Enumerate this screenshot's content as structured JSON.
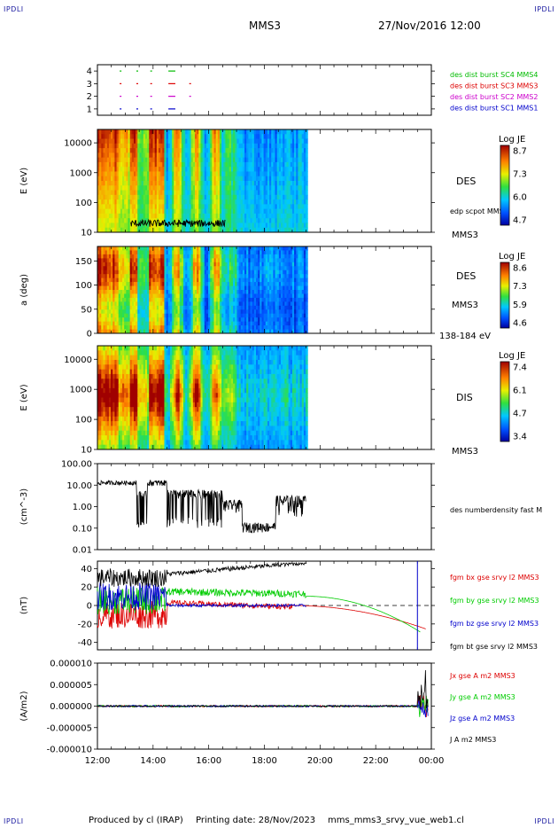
{
  "header": {
    "corner_tl": "IPDLI",
    "corner_tr": "IPDLI",
    "corner_bl": "IPDLI",
    "corner_br": "IPDLI",
    "spacecraft": "MMS3",
    "datetime": "27/Nov/2016 12:00"
  },
  "footer": {
    "produced_by": "Produced by cl (IRAP)",
    "printing_date": "Printing date: 28/Nov/2023",
    "file": "mms_mms3_srvy_vue_web1.cl"
  },
  "chart_data": [
    {
      "type": "scatter",
      "panel": "burst-availability",
      "yticks": [
        "1",
        "2",
        "3",
        "4"
      ],
      "ylim": [
        0.5,
        4.5
      ],
      "series": [
        {
          "name": "des dist burst SC1 MMS1",
          "y": 1,
          "color": "#0000cc",
          "intervals": [
            [
              12.8,
              12.85
            ],
            [
              13.4,
              13.45
            ],
            [
              13.9,
              13.95
            ],
            [
              14.55,
              14.8
            ]
          ]
        },
        {
          "name": "des dist burst SC2 MMS2",
          "y": 2,
          "color": "#cc00cc",
          "intervals": [
            [
              12.8,
              12.85
            ],
            [
              13.4,
              13.45
            ],
            [
              13.9,
              13.95
            ],
            [
              14.55,
              14.8
            ],
            [
              15.3,
              15.33
            ]
          ]
        },
        {
          "name": "des dist burst SC3 MMS3",
          "y": 3,
          "color": "#dd0000",
          "intervals": [
            [
              12.8,
              12.85
            ],
            [
              13.4,
              13.45
            ],
            [
              13.9,
              13.95
            ],
            [
              14.55,
              14.8
            ],
            [
              15.3,
              15.33
            ]
          ]
        },
        {
          "name": "des dist burst SC4 MMS4",
          "y": 4,
          "color": "#00bb00",
          "intervals": [
            [
              12.8,
              12.85
            ],
            [
              13.4,
              13.45
            ],
            [
              13.9,
              13.95
            ],
            [
              14.55,
              14.8
            ]
          ]
        }
      ]
    },
    {
      "type": "heatmap",
      "panel": "des-energy",
      "ylabel": "E (eV)",
      "yticks": [
        "10",
        "100",
        "1000",
        "10000"
      ],
      "label": "DES",
      "sublabel": "MMS3",
      "overlay_label": "edp scpot MMS3",
      "colorbar": {
        "title": "Log JE",
        "ticks": [
          "8.7",
          "7.3",
          "6.0",
          "4.7"
        ]
      }
    },
    {
      "type": "heatmap",
      "panel": "des-pitch",
      "ylabel": "a (deg)",
      "yticks": [
        "0",
        "50",
        "100",
        "150"
      ],
      "label": "DES",
      "sublabel": "MMS3",
      "energy_range": "138-184 eV",
      "colorbar": {
        "title": "Log JE",
        "ticks": [
          "8.6",
          "7.3",
          "5.9",
          "4.6"
        ]
      }
    },
    {
      "type": "heatmap",
      "panel": "dis-energy",
      "ylabel": "E (eV)",
      "yticks": [
        "10",
        "100",
        "1000",
        "10000"
      ],
      "label": "DIS",
      "sublabel": "MMS3",
      "colorbar": {
        "title": "Log JE",
        "ticks": [
          "7.4",
          "6.1",
          "4.7",
          "3.4"
        ]
      }
    },
    {
      "type": "line",
      "panel": "density",
      "ylabel": "(cm^-3)",
      "yticks": [
        "0.01",
        "0.10",
        "1.00",
        "10.00",
        "100.00"
      ],
      "series": [
        {
          "name": "des numberdensity fast M",
          "color": "#000000"
        }
      ]
    },
    {
      "type": "line",
      "panel": "magnetic-field",
      "ylabel": "(nT)",
      "yticks": [
        "-40",
        "-20",
        "0",
        "20",
        "40"
      ],
      "ylim": [
        -48,
        48
      ],
      "series": [
        {
          "name": "fgm bx gse srvy l2 MMS3",
          "color": "#dd0000"
        },
        {
          "name": "fgm by gse srvy l2 MMS3",
          "color": "#00cc00"
        },
        {
          "name": "fgm bz gse srvy l2 MMS3",
          "color": "#0000cc"
        },
        {
          "name": "fgm bt gse srvy l2 MMS3",
          "color": "#000000"
        }
      ]
    },
    {
      "type": "line",
      "panel": "current-density",
      "ylabel": "(A/m2)",
      "yticks": [
        "-0.000010",
        "-0.000005",
        "0.000000",
        "0.000005",
        "0.000010"
      ],
      "ylim": [
        -1e-05,
        1e-05
      ],
      "series": [
        {
          "name": "Jx gse A m2 MMS3",
          "color": "#dd0000"
        },
        {
          "name": "Jy gse A m2 MMS3",
          "color": "#00cc00"
        },
        {
          "name": "Jz gse A m2 MMS3",
          "color": "#0000cc"
        },
        {
          "name": "J A m2 MMS3",
          "color": "#000000"
        }
      ]
    }
  ],
  "time_axis": {
    "ticks": [
      "12:00",
      "14:00",
      "16:00",
      "18:00",
      "20:00",
      "22:00",
      "00:00"
    ],
    "range_hours": [
      12,
      24
    ]
  }
}
